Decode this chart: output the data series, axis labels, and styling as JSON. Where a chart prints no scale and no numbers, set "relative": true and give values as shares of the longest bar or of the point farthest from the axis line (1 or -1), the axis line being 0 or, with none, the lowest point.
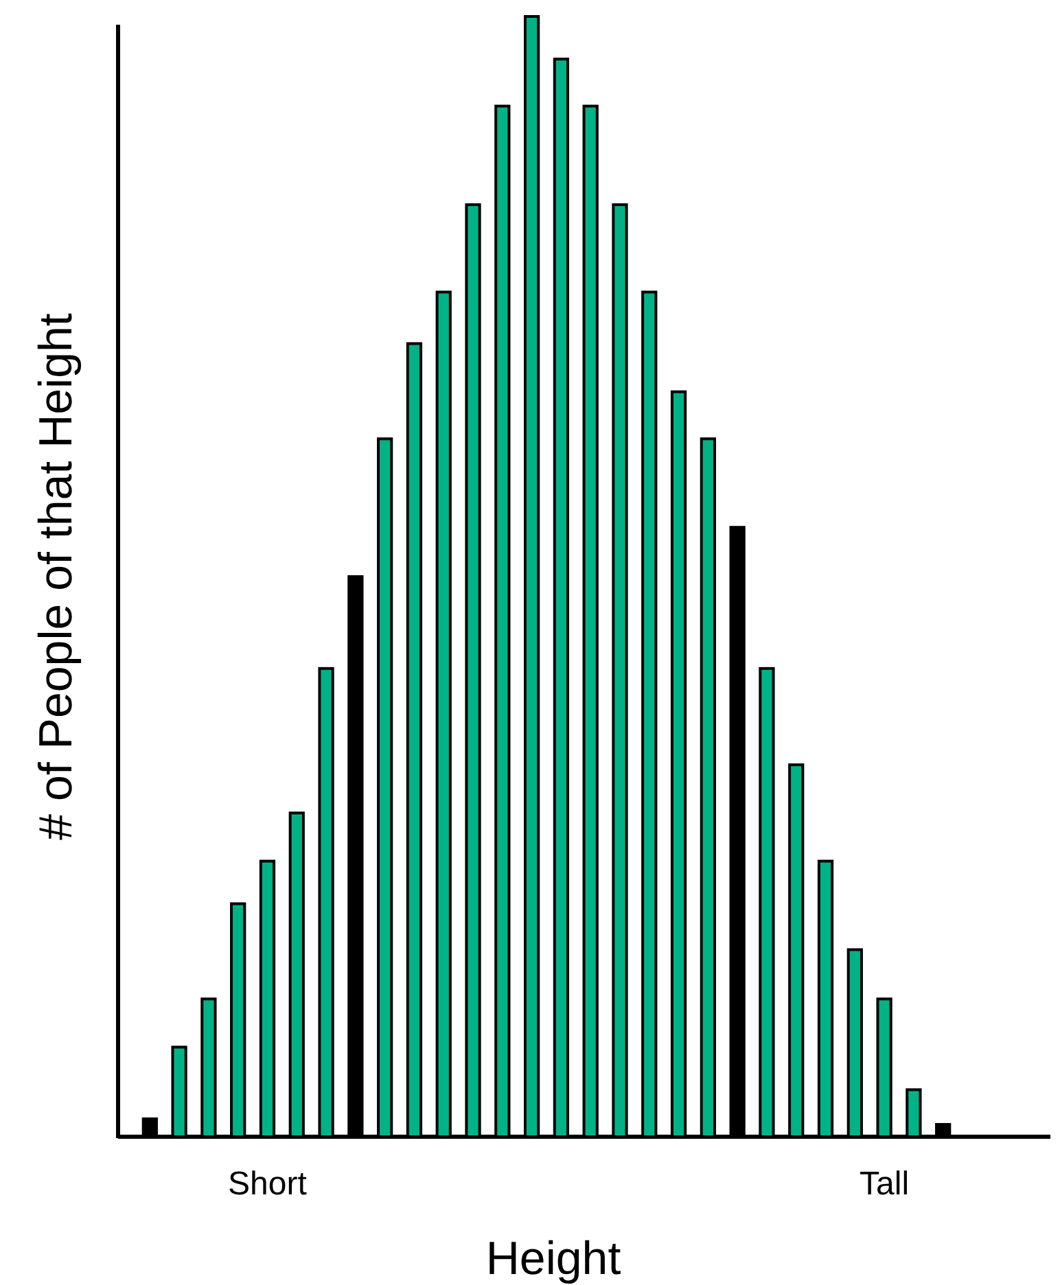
{
  "chart_data": {
    "type": "bar",
    "relative": true,
    "xlabel": "Height",
    "ylabel": "# of People of that Height",
    "categories": [
      null,
      null,
      null,
      null,
      "Short",
      null,
      null,
      null,
      null,
      null,
      null,
      null,
      null,
      null,
      null,
      null,
      null,
      null,
      null,
      null,
      null,
      null,
      null,
      null,
      null,
      "Tall",
      null,
      null
    ],
    "values": [
      0.016,
      0.08,
      0.123,
      0.208,
      0.246,
      0.289,
      0.418,
      0.5,
      0.623,
      0.708,
      0.754,
      0.832,
      0.92,
      1,
      0.962,
      0.92,
      0.832,
      0.754,
      0.665,
      0.623,
      0.544,
      0.418,
      0.332,
      0.246,
      0.167,
      0.123,
      0.042,
      0.011
    ],
    "colors": [
      "#000000",
      "#00b386",
      "#00b386",
      "#00b386",
      "#00b386",
      "#00b386",
      "#00b386",
      "#000000",
      "#00b386",
      "#00b386",
      "#00b386",
      "#00b386",
      "#00b386",
      "#00b386",
      "#00b386",
      "#00b386",
      "#00b386",
      "#00b386",
      "#00b386",
      "#00b386",
      "#000000",
      "#00b386",
      "#00b386",
      "#00b386",
      "#00b386",
      "#00b386",
      "#00b386",
      "#000000"
    ]
  }
}
